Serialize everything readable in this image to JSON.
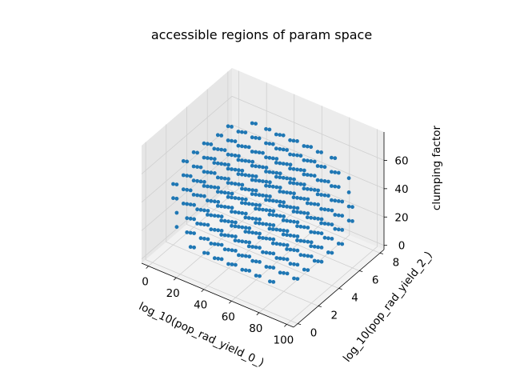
{
  "chart_data": {
    "type": "scatter",
    "projection": "3d",
    "title": "accessible regions of param space",
    "xlabel": "log_10(pop_rad_yield_0_)",
    "ylabel": "log_10(pop_rad_yield_2_)",
    "zlabel": "clumping factor",
    "xlim": [
      -5,
      105
    ],
    "ylim": [
      -0.4,
      8.4
    ],
    "zlim": [
      -3,
      80
    ],
    "x_ticks": [
      "0",
      "20",
      "40",
      "60",
      "80",
      "100"
    ],
    "y_ticks": [
      "0",
      "2",
      "4",
      "6",
      "8"
    ],
    "z_ticks": [
      "0",
      "20",
      "40",
      "60"
    ],
    "marker_color": "#1f77b4",
    "grid": true,
    "sampling": {
      "x_grid": [
        0,
        10,
        20,
        30,
        40,
        50,
        60,
        70,
        80,
        90,
        100
      ],
      "y_grid": [
        0,
        1,
        2,
        3,
        4,
        5,
        6,
        7,
        8
      ],
      "z_grid": [
        0,
        10,
        20,
        30,
        40,
        50,
        60,
        70
      ],
      "note": "points fill a roughly spherical region of the grid"
    }
  }
}
